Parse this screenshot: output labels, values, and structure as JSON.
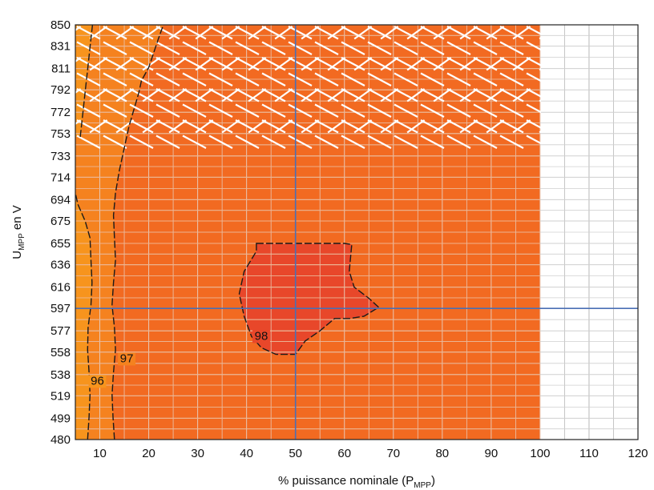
{
  "chart_data": {
    "type": "heatmap",
    "title": "",
    "xlabel": {
      "text": "% puissance nominale (P",
      "sub": "MPP",
      "tail": ")"
    },
    "ylabel": {
      "text": "U",
      "sub": "MPP",
      "tail": " en V"
    },
    "x_ticks": [
      10,
      20,
      30,
      40,
      50,
      60,
      70,
      80,
      90,
      100,
      110,
      120
    ],
    "y_ticks": [
      480,
      499,
      519,
      538,
      558,
      577,
      597,
      616,
      636,
      655,
      675,
      694,
      714,
      733,
      753,
      772,
      792,
      811,
      831,
      850
    ],
    "xlim": [
      5,
      120
    ],
    "ylim": [
      480,
      850
    ],
    "grid": true,
    "reference_lines": {
      "x": 50,
      "y": 597
    },
    "regions": [
      {
        "name": "operating-range",
        "x": [
          5,
          100
        ],
        "y": [
          480,
          850
        ],
        "color": "#f26a21"
      },
      {
        "name": "hatched-zone",
        "x": [
          5,
          100
        ],
        "y": [
          740,
          850
        ],
        "pattern": "diagonal-hatch"
      }
    ],
    "contours": [
      {
        "label": "96",
        "color": "#f7941d",
        "points": [
          [
            7.5,
            480
          ],
          [
            7.8,
            500
          ],
          [
            8,
            520
          ],
          [
            7.8,
            540
          ],
          [
            7.5,
            560
          ],
          [
            7.6,
            580
          ],
          [
            8.2,
            600
          ],
          [
            8.4,
            620
          ],
          [
            8.2,
            640
          ],
          [
            8,
            660
          ],
          [
            7,
            675
          ],
          [
            5.5,
            690
          ],
          [
            5,
            700
          ]
        ],
        "top_points": [
          [
            8.5,
            850
          ],
          [
            8,
            830
          ],
          [
            7.5,
            810
          ],
          [
            7,
            790
          ],
          [
            6.5,
            770
          ],
          [
            6,
            750
          ]
        ]
      },
      {
        "label": "97",
        "color": "#f5821f",
        "points": [
          [
            13,
            480
          ],
          [
            12.7,
            500
          ],
          [
            12.5,
            520
          ],
          [
            12.8,
            540
          ],
          [
            13.2,
            560
          ],
          [
            13,
            580
          ],
          [
            12.5,
            600
          ],
          [
            12.8,
            620
          ],
          [
            13.2,
            640
          ],
          [
            13,
            660
          ],
          [
            12.8,
            680
          ],
          [
            13.2,
            700
          ],
          [
            14,
            720
          ],
          [
            15,
            740
          ],
          [
            16,
            760
          ],
          [
            17,
            775
          ],
          [
            18,
            790
          ],
          [
            18.5,
            800
          ],
          [
            20,
            812
          ],
          [
            21,
            825
          ],
          [
            22,
            838
          ],
          [
            23,
            850
          ]
        ]
      },
      {
        "label": "98",
        "color": "#e8472a",
        "points": [
          [
            42,
            655
          ],
          [
            60,
            655
          ],
          [
            61.5,
            654
          ],
          [
            61,
            630
          ],
          [
            62,
            616
          ],
          [
            65,
            606
          ],
          [
            67,
            598
          ],
          [
            64,
            590
          ],
          [
            61,
            588
          ],
          [
            58,
            588
          ],
          [
            55,
            577
          ],
          [
            52,
            568
          ],
          [
            50,
            556
          ],
          [
            46,
            556
          ],
          [
            43,
            562
          ],
          [
            41,
            572
          ],
          [
            39.5,
            590
          ],
          [
            38.5,
            610
          ],
          [
            39.5,
            630
          ],
          [
            42,
            648
          ]
        ]
      }
    ],
    "contour_labels": [
      {
        "text": "96",
        "x": 9.5,
        "y": 529
      },
      {
        "text": "97",
        "x": 15.5,
        "y": 549
      },
      {
        "text": "98",
        "x": 43,
        "y": 569
      }
    ]
  }
}
